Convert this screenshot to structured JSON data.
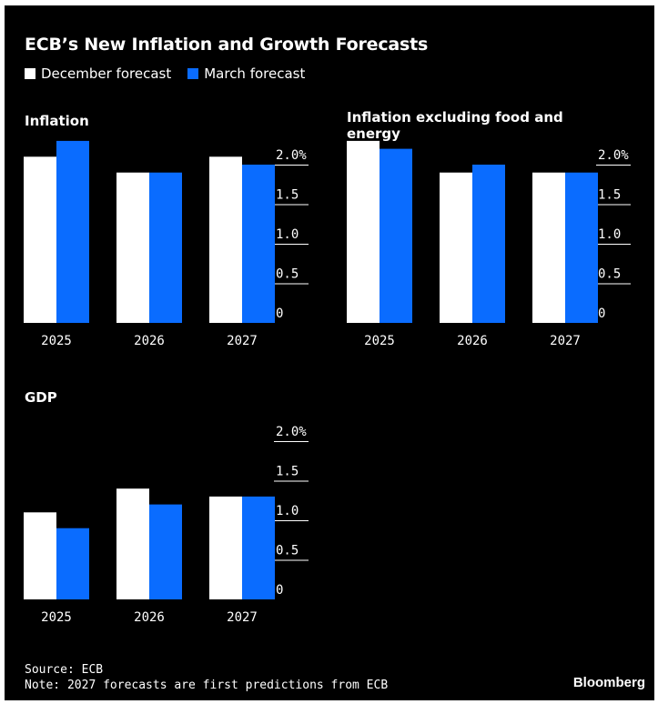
{
  "title": "ECB’s New Inflation and Growth Forecasts",
  "legend": [
    {
      "label": "December forecast",
      "color": "#ffffff"
    },
    {
      "label": "March forecast",
      "color": "#0a6cff"
    }
  ],
  "chart_data": [
    {
      "type": "bar",
      "title": "Inflation",
      "categories": [
        "2025",
        "2026",
        "2027"
      ],
      "series": [
        {
          "name": "December forecast",
          "values": [
            2.1,
            1.9,
            2.1
          ]
        },
        {
          "name": "March forecast",
          "values": [
            2.3,
            1.9,
            2.0
          ]
        }
      ],
      "yticks": [
        "0",
        "0.5",
        "1.0",
        "1.5",
        "2.0%"
      ],
      "ylim": [
        0,
        2.3
      ]
    },
    {
      "type": "bar",
      "title": "Inflation excluding food and energy",
      "categories": [
        "2025",
        "2026",
        "2027"
      ],
      "series": [
        {
          "name": "December forecast",
          "values": [
            2.3,
            1.9,
            1.9
          ]
        },
        {
          "name": "March forecast",
          "values": [
            2.2,
            2.0,
            1.9
          ]
        }
      ],
      "yticks": [
        "0",
        "0.5",
        "1.0",
        "1.5",
        "2.0%"
      ],
      "ylim": [
        0,
        2.3
      ]
    },
    {
      "type": "bar",
      "title": "GDP",
      "categories": [
        "2025",
        "2026",
        "2027"
      ],
      "series": [
        {
          "name": "December forecast",
          "values": [
            1.1,
            1.4,
            1.3
          ]
        },
        {
          "name": "March forecast",
          "values": [
            0.9,
            1.2,
            1.3
          ]
        }
      ],
      "yticks": [
        "0",
        "0.5",
        "1.0",
        "1.5",
        "2.0%"
      ],
      "ylim": [
        0,
        2.3
      ]
    }
  ],
  "source": "Source: ECB",
  "note": "Note: 2027 forecasts are first predictions from ECB",
  "brand": "Bloomberg"
}
